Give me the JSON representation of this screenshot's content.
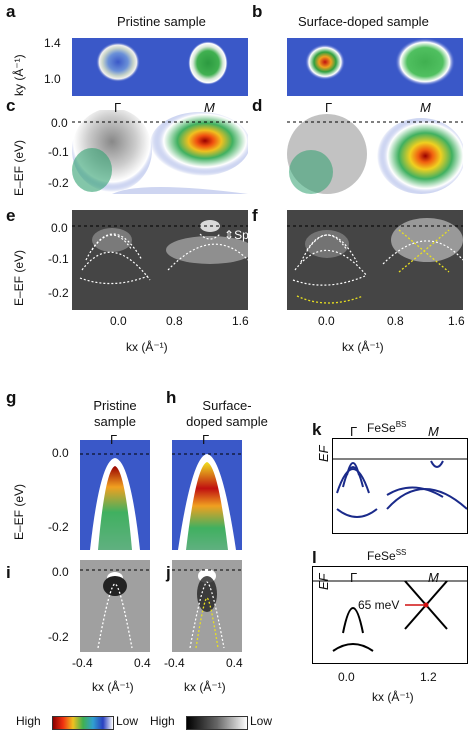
{
  "panels": {
    "a": "a",
    "b": "b",
    "c": "c",
    "d": "d",
    "e": "e",
    "f": "f",
    "g": "g",
    "h": "h",
    "i": "i",
    "j": "j",
    "k": "k",
    "l": "l"
  },
  "titles": {
    "pristine": "Pristine sample",
    "surface": "Surface-doped sample",
    "pristine_g_1": "Pristine",
    "pristine_g_2": "sample",
    "surface_h_1": "Surface-",
    "surface_h_2": "doped sample"
  },
  "axes": {
    "ky_label": "ky (Å⁻¹)",
    "energy_label": "E–EF (eV)",
    "kx_label": "kx (Å⁻¹)",
    "ef_label": "EF",
    "ky_ticks": [
      "1.4",
      "1.0"
    ],
    "energy_ticks_top": [
      "0.0",
      "-0.1",
      "-0.2"
    ],
    "kx_ticks_top": [
      "0.0",
      "0.8",
      "1.6"
    ],
    "energy_ticks_bottom": [
      "0.0",
      "-0.2"
    ],
    "kx_ticks_bottom": [
      "-0.4",
      "0.4"
    ],
    "kx_ticks_schematic": [
      "0.0",
      "1.2"
    ]
  },
  "annotations": {
    "gamma": "Γ",
    "m": "M",
    "split": "Split",
    "fese_bs": "FeSeBS",
    "fese_ss": "FeSeSS",
    "gap": "65 meV"
  },
  "colorbar": {
    "high": "High",
    "low": "Low",
    "high2": "High",
    "low2": "Low"
  },
  "colors": {
    "highlight_yellow": "#e8e020",
    "band_blue": "#1a2a8a",
    "red_marker": "#d01010"
  }
}
